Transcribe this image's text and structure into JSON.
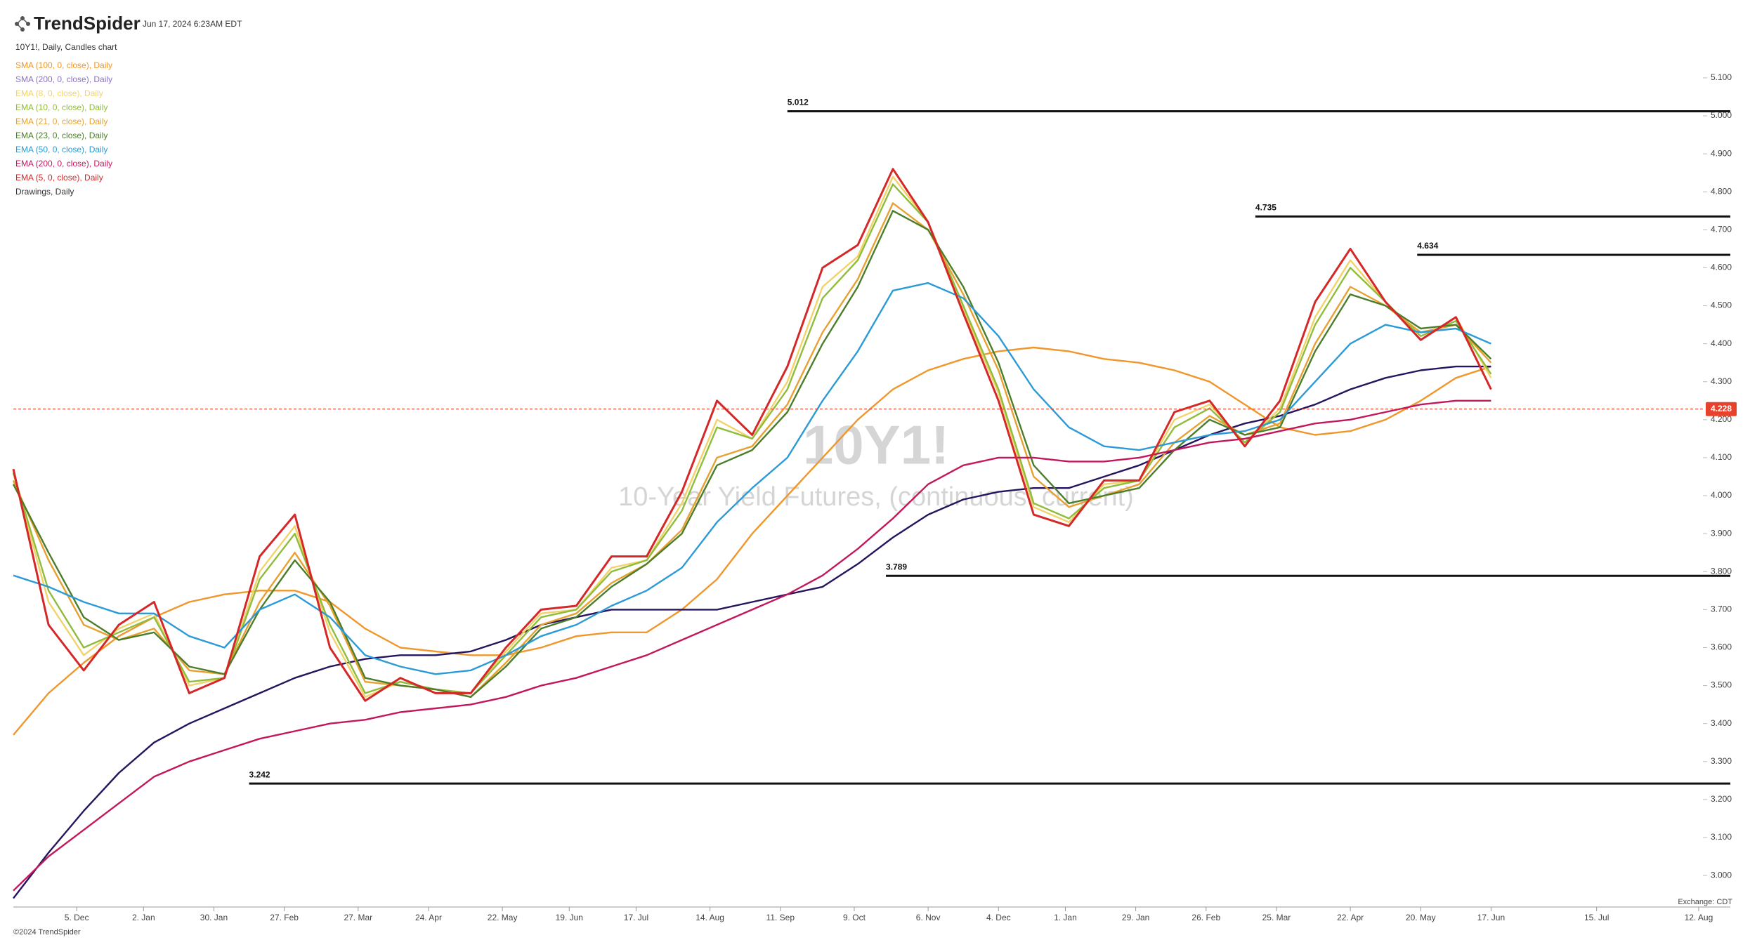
{
  "header": {
    "brand": "TrendSpider",
    "timestamp": "Jun 17, 2024 6:23AM EDT",
    "exchange": "Exchange: CDT",
    "copyright": "©2024 TrendSpider",
    "drawings": "Drawings, Daily"
  },
  "chart_data": {
    "type": "line",
    "subtitle": "10Y1!, Daily, Candles chart",
    "watermark": "10Y1!",
    "watermark_subtitle": "10-Year Yield Futures, (continuous: current)",
    "x": [
      0,
      10,
      20,
      30,
      40,
      50,
      60,
      70,
      80,
      90,
      100,
      110,
      120,
      130,
      140,
      150,
      160,
      170,
      180,
      190,
      200,
      210,
      220,
      230,
      240,
      250,
      260,
      270,
      280,
      290,
      300,
      310,
      320,
      330,
      340,
      350,
      360,
      370,
      380,
      390,
      400,
      410,
      420
    ],
    "xlim": [
      0,
      488
    ],
    "xticks": [
      {
        "value": 18,
        "label": "5. Dec"
      },
      {
        "value": 37,
        "label": "2. Jan"
      },
      {
        "value": 57,
        "label": "30. Jan"
      },
      {
        "value": 77,
        "label": "27. Feb"
      },
      {
        "value": 98,
        "label": "27. Mar"
      },
      {
        "value": 118,
        "label": "24. Apr"
      },
      {
        "value": 139,
        "label": "22. May"
      },
      {
        "value": 158,
        "label": "19. Jun"
      },
      {
        "value": 177,
        "label": "17. Jul"
      },
      {
        "value": 198,
        "label": "14. Aug"
      },
      {
        "value": 218,
        "label": "11. Sep"
      },
      {
        "value": 239,
        "label": "9. Oct"
      },
      {
        "value": 260,
        "label": "6. Nov"
      },
      {
        "value": 280,
        "label": "4. Dec"
      },
      {
        "value": 299,
        "label": "1. Jan"
      },
      {
        "value": 319,
        "label": "29. Jan"
      },
      {
        "value": 339,
        "label": "26. Feb"
      },
      {
        "value": 359,
        "label": "25. Mar"
      },
      {
        "value": 380,
        "label": "22. Apr"
      },
      {
        "value": 400,
        "label": "20. May"
      },
      {
        "value": 420,
        "label": "17. Jun"
      },
      {
        "value": 450,
        "label": "15. Jul"
      },
      {
        "value": 479,
        "label": "12. Aug"
      }
    ],
    "ylim": [
      2.917,
      5.268
    ],
    "yticks": [
      {
        "value": 3.0,
        "label": "3.000"
      },
      {
        "value": 3.1,
        "label": "3.100"
      },
      {
        "value": 3.2,
        "label": "3.200"
      },
      {
        "value": 3.3,
        "label": "3.300"
      },
      {
        "value": 3.4,
        "label": "3.400"
      },
      {
        "value": 3.5,
        "label": "3.500"
      },
      {
        "value": 3.6,
        "label": "3.600"
      },
      {
        "value": 3.7,
        "label": "3.700"
      },
      {
        "value": 3.8,
        "label": "3.800"
      },
      {
        "value": 3.9,
        "label": "3.900"
      },
      {
        "value": 4.0,
        "label": "4.000"
      },
      {
        "value": 4.1,
        "label": "4.100"
      },
      {
        "value": 4.2,
        "label": "4.200"
      },
      {
        "value": 4.3,
        "label": "4.300"
      },
      {
        "value": 4.4,
        "label": "4.400"
      },
      {
        "value": 4.5,
        "label": "4.500"
      },
      {
        "value": 4.6,
        "label": "4.600"
      },
      {
        "value": 4.7,
        "label": "4.700"
      },
      {
        "value": 4.8,
        "label": "4.800"
      },
      {
        "value": 4.9,
        "label": "4.900"
      },
      {
        "value": 5.0,
        "label": "5.000"
      },
      {
        "value": 5.1,
        "label": "5.100"
      }
    ],
    "series": [
      {
        "name": "SMA (100, 0, close), Daily",
        "color": "#f0962a",
        "values": [
          3.37,
          3.48,
          3.56,
          3.63,
          3.68,
          3.72,
          3.74,
          3.75,
          3.75,
          3.72,
          3.65,
          3.6,
          3.59,
          3.58,
          3.58,
          3.6,
          3.63,
          3.64,
          3.64,
          3.7,
          3.78,
          3.9,
          4.0,
          4.1,
          4.2,
          4.28,
          4.33,
          4.36,
          4.38,
          4.39,
          4.38,
          4.36,
          4.35,
          4.33,
          4.3,
          4.24,
          4.18,
          4.16,
          4.17,
          4.2,
          4.25,
          4.31,
          4.34
        ]
      },
      {
        "name": "SMA (200, 0, close), Daily",
        "color": "#8a72c4",
        "line_color": "#26145e",
        "values": [
          2.94,
          3.06,
          3.17,
          3.27,
          3.35,
          3.4,
          3.44,
          3.48,
          3.52,
          3.55,
          3.57,
          3.58,
          3.58,
          3.59,
          3.62,
          3.66,
          3.68,
          3.7,
          3.7,
          3.7,
          3.7,
          3.72,
          3.74,
          3.76,
          3.82,
          3.89,
          3.95,
          3.99,
          4.01,
          4.02,
          4.02,
          4.05,
          4.08,
          4.12,
          4.16,
          4.19,
          4.21,
          4.24,
          4.28,
          4.31,
          4.33,
          4.34,
          4.34
        ]
      },
      {
        "name": "EMA (8, 0, close), Daily",
        "color": "#f2d36a",
        "values": [
          4.06,
          3.72,
          3.58,
          3.65,
          3.69,
          3.5,
          3.52,
          3.8,
          3.92,
          3.64,
          3.47,
          3.51,
          3.49,
          3.48,
          3.59,
          3.69,
          3.7,
          3.81,
          3.83,
          3.98,
          4.2,
          4.15,
          4.3,
          4.55,
          4.63,
          4.84,
          4.72,
          4.49,
          4.27,
          3.97,
          3.93,
          4.03,
          4.04,
          4.2,
          4.24,
          4.14,
          4.23,
          4.47,
          4.62,
          4.51,
          4.41,
          4.47,
          4.31
        ]
      },
      {
        "name": "EMA (10, 0, close), Daily",
        "color": "#8fbc3a",
        "values": [
          4.06,
          3.75,
          3.6,
          3.64,
          3.68,
          3.51,
          3.52,
          3.78,
          3.9,
          3.66,
          3.48,
          3.51,
          3.49,
          3.48,
          3.58,
          3.68,
          3.7,
          3.8,
          3.83,
          3.96,
          4.18,
          4.15,
          4.28,
          4.52,
          4.62,
          4.82,
          4.72,
          4.5,
          4.28,
          3.98,
          3.94,
          4.02,
          4.04,
          4.18,
          4.23,
          4.14,
          4.22,
          4.45,
          4.6,
          4.51,
          4.42,
          4.46,
          4.32
        ]
      },
      {
        "name": "EMA (21, 0, close), Daily",
        "color": "#e8a030",
        "values": [
          4.04,
          3.83,
          3.66,
          3.62,
          3.65,
          3.54,
          3.53,
          3.72,
          3.85,
          3.71,
          3.51,
          3.5,
          3.49,
          3.47,
          3.56,
          3.66,
          3.69,
          3.77,
          3.82,
          3.91,
          4.1,
          4.13,
          4.24,
          4.43,
          4.57,
          4.77,
          4.7,
          4.53,
          4.33,
          4.05,
          3.97,
          4.0,
          4.03,
          4.14,
          4.21,
          4.16,
          4.19,
          4.4,
          4.55,
          4.5,
          4.43,
          4.45,
          4.35
        ]
      },
      {
        "name": "EMA (23, 0, close), Daily",
        "color": "#4b7d2a",
        "values": [
          4.03,
          3.85,
          3.68,
          3.62,
          3.64,
          3.55,
          3.53,
          3.7,
          3.83,
          3.72,
          3.52,
          3.5,
          3.49,
          3.47,
          3.55,
          3.65,
          3.68,
          3.76,
          3.82,
          3.9,
          4.08,
          4.12,
          4.22,
          4.4,
          4.55,
          4.75,
          4.7,
          4.55,
          4.35,
          4.08,
          3.98,
          4.0,
          4.02,
          4.12,
          4.2,
          4.16,
          4.18,
          4.38,
          4.53,
          4.5,
          4.44,
          4.45,
          4.36
        ]
      },
      {
        "name": "EMA (50, 0, close), Daily",
        "color": "#2b9ad6",
        "values": [
          3.79,
          3.76,
          3.72,
          3.69,
          3.69,
          3.63,
          3.6,
          3.7,
          3.74,
          3.68,
          3.58,
          3.55,
          3.53,
          3.54,
          3.58,
          3.63,
          3.66,
          3.71,
          3.75,
          3.81,
          3.93,
          4.02,
          4.1,
          4.25,
          4.38,
          4.54,
          4.56,
          4.52,
          4.42,
          4.28,
          4.18,
          4.13,
          4.12,
          4.14,
          4.16,
          4.17,
          4.2,
          4.3,
          4.4,
          4.45,
          4.43,
          4.44,
          4.4
        ]
      },
      {
        "name": "EMA (200, 0, close), Daily",
        "color": "#c2185b",
        "values": [
          2.96,
          3.05,
          3.12,
          3.19,
          3.26,
          3.3,
          3.33,
          3.36,
          3.38,
          3.4,
          3.41,
          3.43,
          3.44,
          3.45,
          3.47,
          3.5,
          3.52,
          3.55,
          3.58,
          3.62,
          3.66,
          3.7,
          3.74,
          3.79,
          3.86,
          3.94,
          4.03,
          4.08,
          4.1,
          4.1,
          4.09,
          4.09,
          4.1,
          4.12,
          4.14,
          4.15,
          4.17,
          4.19,
          4.2,
          4.22,
          4.24,
          4.25,
          4.25
        ]
      },
      {
        "name": "EMA (5, 0, close), Daily",
        "color": "#d62728",
        "values": [
          4.07,
          3.66,
          3.54,
          3.66,
          3.72,
          3.48,
          3.52,
          3.84,
          3.95,
          3.6,
          3.46,
          3.52,
          3.48,
          3.48,
          3.6,
          3.7,
          3.71,
          3.84,
          3.84,
          4.01,
          4.25,
          4.16,
          4.34,
          4.6,
          4.66,
          4.86,
          4.72,
          4.48,
          4.25,
          3.95,
          3.92,
          4.04,
          4.04,
          4.22,
          4.25,
          4.13,
          4.25,
          4.51,
          4.65,
          4.51,
          4.41,
          4.47,
          4.28
        ]
      }
    ],
    "levels": [
      {
        "value": 5.012,
        "x_start": 220
      },
      {
        "value": 4.735,
        "x_start": 353
      },
      {
        "value": 4.634,
        "x_start": 399
      },
      {
        "value": 3.789,
        "x_start": 248
      },
      {
        "value": 3.242,
        "x_start": 67
      }
    ],
    "last_price": 4.228,
    "last_price_color": "#e8412c"
  }
}
